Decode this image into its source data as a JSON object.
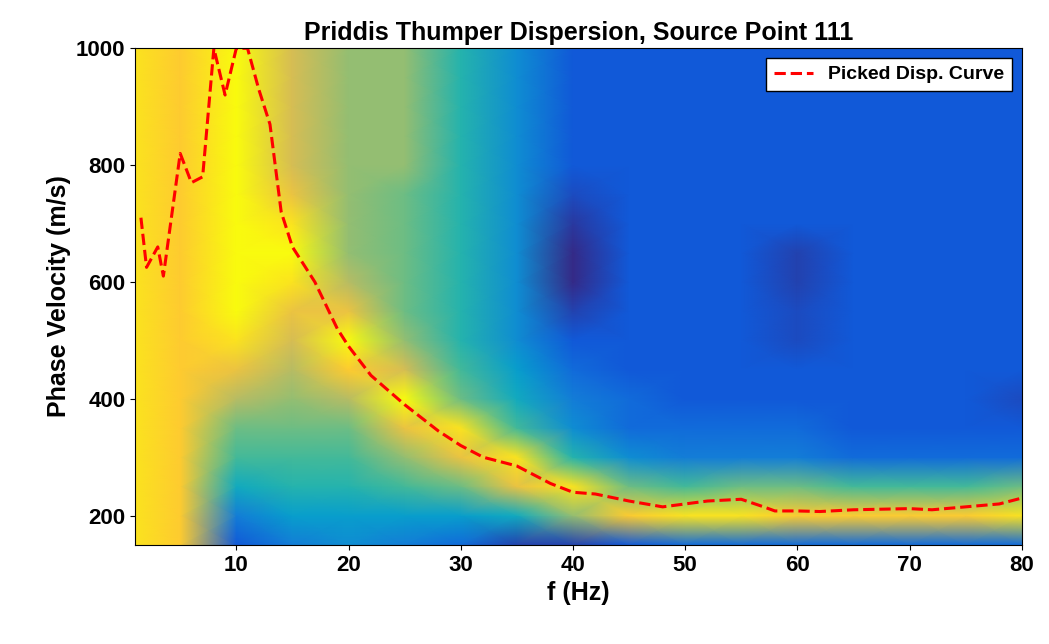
{
  "chart_data": {
    "type": "heatmap",
    "title": "Priddis Thumper Dispersion, Source Point 111",
    "x_label": "f (Hz)",
    "y_label": "Phase Velocity (m/s)",
    "xlim": [
      1,
      80
    ],
    "ylim": [
      150,
      1000
    ],
    "xticks": [
      10,
      20,
      30,
      40,
      50,
      60,
      70,
      80
    ],
    "yticks": [
      200,
      400,
      600,
      800,
      1000
    ],
    "legend": "upper right",
    "heatmap": {
      "x": [
        1,
        5,
        10,
        15,
        20,
        25,
        30,
        35,
        40,
        45,
        50,
        55,
        60,
        65,
        70,
        75,
        80
      ],
      "y": [
        150,
        200,
        250,
        300,
        350,
        400,
        450,
        500,
        550,
        600,
        650,
        700,
        750,
        800,
        850,
        900,
        950,
        1000
      ],
      "cells": [
        [
          0.85,
          0.8,
          0.15,
          0.25,
          0.3,
          0.25,
          0.2,
          0.1,
          0.1,
          0.15,
          0.2,
          0.2,
          0.2,
          0.2,
          0.2,
          0.2,
          0.2
        ],
        [
          0.85,
          0.8,
          0.25,
          0.35,
          0.35,
          0.35,
          0.35,
          0.4,
          0.6,
          0.8,
          0.85,
          0.85,
          0.8,
          0.8,
          0.8,
          0.8,
          0.85
        ],
        [
          0.85,
          0.8,
          0.4,
          0.45,
          0.45,
          0.5,
          0.55,
          0.75,
          0.85,
          0.55,
          0.5,
          0.55,
          0.55,
          0.5,
          0.5,
          0.5,
          0.55
        ],
        [
          0.85,
          0.8,
          0.5,
          0.5,
          0.5,
          0.6,
          0.75,
          0.85,
          0.45,
          0.3,
          0.25,
          0.25,
          0.25,
          0.2,
          0.2,
          0.2,
          0.2
        ],
        [
          0.85,
          0.8,
          0.55,
          0.55,
          0.55,
          0.75,
          0.85,
          0.5,
          0.3,
          0.2,
          0.2,
          0.2,
          0.2,
          0.15,
          0.15,
          0.15,
          0.15
        ],
        [
          0.85,
          0.8,
          0.65,
          0.6,
          0.65,
          0.9,
          0.55,
          0.4,
          0.25,
          0.2,
          0.15,
          0.15,
          0.15,
          0.15,
          0.15,
          0.15,
          0.12
        ],
        [
          0.85,
          0.8,
          0.75,
          0.65,
          0.8,
          0.7,
          0.5,
          0.35,
          0.2,
          0.15,
          0.15,
          0.15,
          0.15,
          0.15,
          0.15,
          0.15,
          0.15
        ],
        [
          0.85,
          0.8,
          0.85,
          0.7,
          0.9,
          0.6,
          0.45,
          0.3,
          0.15,
          0.15,
          0.15,
          0.15,
          0.12,
          0.15,
          0.15,
          0.15,
          0.15
        ],
        [
          0.85,
          0.8,
          0.9,
          0.75,
          0.75,
          0.55,
          0.45,
          0.3,
          0.1,
          0.15,
          0.15,
          0.15,
          0.12,
          0.15,
          0.15,
          0.15,
          0.15
        ],
        [
          0.85,
          0.8,
          0.9,
          0.85,
          0.65,
          0.55,
          0.45,
          0.3,
          0.05,
          0.15,
          0.15,
          0.15,
          0.1,
          0.15,
          0.15,
          0.15,
          0.15
        ],
        [
          0.85,
          0.8,
          0.9,
          0.9,
          0.6,
          0.55,
          0.45,
          0.3,
          0.05,
          0.15,
          0.15,
          0.15,
          0.1,
          0.15,
          0.15,
          0.15,
          0.15
        ],
        [
          0.85,
          0.8,
          0.9,
          0.85,
          0.6,
          0.55,
          0.45,
          0.3,
          0.08,
          0.15,
          0.15,
          0.15,
          0.15,
          0.15,
          0.15,
          0.15,
          0.15
        ],
        [
          0.85,
          0.8,
          0.9,
          0.75,
          0.6,
          0.55,
          0.45,
          0.3,
          0.12,
          0.15,
          0.15,
          0.15,
          0.15,
          0.15,
          0.15,
          0.15,
          0.15
        ],
        [
          0.85,
          0.8,
          0.9,
          0.7,
          0.6,
          0.6,
          0.45,
          0.3,
          0.15,
          0.15,
          0.15,
          0.15,
          0.15,
          0.15,
          0.15,
          0.15,
          0.15
        ],
        [
          0.85,
          0.8,
          0.9,
          0.7,
          0.6,
          0.6,
          0.45,
          0.3,
          0.15,
          0.15,
          0.15,
          0.15,
          0.15,
          0.15,
          0.15,
          0.15,
          0.15
        ],
        [
          0.85,
          0.8,
          0.9,
          0.7,
          0.6,
          0.6,
          0.45,
          0.3,
          0.15,
          0.15,
          0.15,
          0.15,
          0.15,
          0.15,
          0.15,
          0.15,
          0.15
        ],
        [
          0.85,
          0.8,
          0.9,
          0.7,
          0.6,
          0.6,
          0.45,
          0.3,
          0.15,
          0.15,
          0.15,
          0.15,
          0.15,
          0.15,
          0.15,
          0.15,
          0.15
        ],
        [
          0.85,
          0.8,
          0.9,
          0.7,
          0.6,
          0.6,
          0.45,
          0.3,
          0.15,
          0.15,
          0.15,
          0.15,
          0.15,
          0.15,
          0.15,
          0.15,
          0.15
        ]
      ]
    },
    "series": [
      {
        "name": "Picked Disp. Curve",
        "type": "line",
        "color": "#ff0000",
        "line_style": "dashed",
        "x": [
          1.5,
          2,
          3,
          3.5,
          4,
          5,
          6,
          7,
          8,
          9,
          10,
          11,
          12,
          13,
          14,
          15,
          17,
          19,
          20,
          22,
          25,
          28,
          30,
          32,
          35,
          38,
          40,
          42,
          45,
          48,
          50,
          52,
          55,
          57,
          58,
          60,
          62,
          65,
          70,
          72,
          75,
          78,
          80
        ],
        "values": [
          710,
          625,
          660,
          610,
          680,
          820,
          770,
          780,
          1000,
          920,
          1000,
          1000,
          930,
          870,
          720,
          660,
          600,
          520,
          490,
          440,
          390,
          345,
          320,
          300,
          285,
          255,
          240,
          237,
          225,
          215,
          220,
          225,
          228,
          215,
          208,
          208,
          207,
          210,
          212,
          210,
          215,
          220,
          230
        ]
      }
    ]
  }
}
